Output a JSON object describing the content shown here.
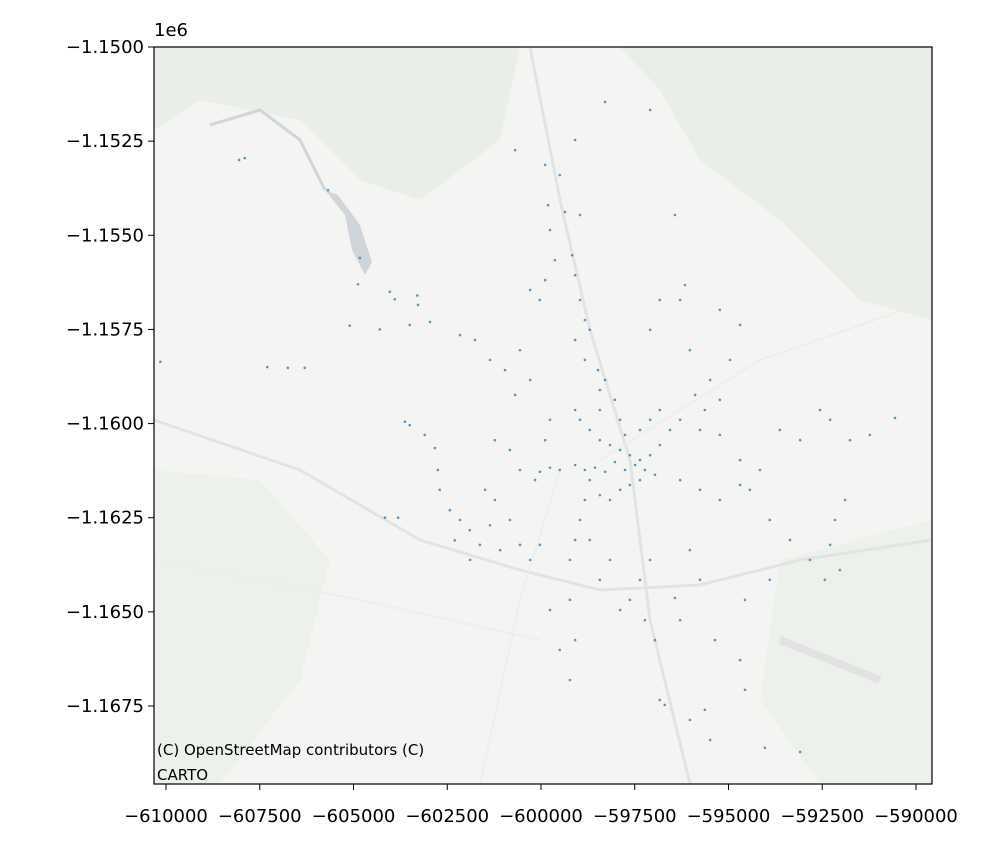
{
  "chart_data": {
    "type": "scatter",
    "offset_label": "1e6",
    "attribution": [
      "(C) OpenStreetMap contributors (C)",
      "CARTO"
    ],
    "color": "#1f77b4",
    "xlim": [
      -610320,
      -589573
    ],
    "ylim": [
      -1169571,
      -1150000
    ],
    "xticks": [
      {
        "value": -610000,
        "label": "−610000"
      },
      {
        "value": -607500,
        "label": "−607500"
      },
      {
        "value": -605000,
        "label": "−605000"
      },
      {
        "value": -602500,
        "label": "−602500"
      },
      {
        "value": -600000,
        "label": "−600000"
      },
      {
        "value": -597500,
        "label": "−597500"
      },
      {
        "value": -595000,
        "label": "−595000"
      },
      {
        "value": -592500,
        "label": "−592500"
      },
      {
        "value": -590000,
        "label": "−590000"
      }
    ],
    "yticks": [
      {
        "value": -1150000,
        "label": "−1.1500"
      },
      {
        "value": -1152500,
        "label": "−1.1525"
      },
      {
        "value": -1155000,
        "label": "−1.1550"
      },
      {
        "value": -1157500,
        "label": "−1.1575"
      },
      {
        "value": -1160000,
        "label": "−1.1600"
      },
      {
        "value": -1162500,
        "label": "−1.1625"
      },
      {
        "value": -1165000,
        "label": "−1.1650"
      },
      {
        "value": -1167500,
        "label": "−1.1675"
      }
    ],
    "x": [
      -607900,
      -608050,
      -605680,
      -604830,
      -604880,
      -605100,
      -604300,
      -603900,
      -604030,
      -603300,
      -603280,
      -602960,
      -602160,
      -603500,
      -607300,
      -606750,
      -606300,
      -610150,
      -603630,
      -603500,
      -603100,
      -602830,
      -602750,
      -602700,
      -604160,
      -603810,
      -602430,
      -602300,
      -601890,
      -601630,
      -601360,
      -601090,
      -600830,
      -600560,
      -600290,
      -600030,
      -601900,
      -602160,
      -601230,
      -601490,
      -601760,
      -601360,
      -600960,
      -600560,
      -600290,
      -600690,
      -601230,
      -600830,
      -600560,
      -600160,
      -599890,
      -599760,
      -599810,
      -599760,
      -599630,
      -599890,
      -599360,
      -598960,
      -599170,
      -599090,
      -598960,
      -598830,
      -598700,
      -599090,
      -598830,
      -598480,
      -598430,
      -598290,
      -600290,
      -600030,
      -599890,
      -599500,
      -600690,
      -598290,
      -597090,
      -599090,
      -599090,
      -598960,
      -598700,
      -598430,
      -598160,
      -597890,
      -597630,
      -597360,
      -597090,
      -596830,
      -596560,
      -596290,
      -599090,
      -598830,
      -598560,
      -598290,
      -598030,
      -597760,
      -597490,
      -597230,
      -596960,
      -597890,
      -597760,
      -598030,
      -598430,
      -597360,
      -597090,
      -596830,
      -599500,
      -599760,
      -600030,
      -598700,
      -598430,
      -598160,
      -597890,
      -597630,
      -597360,
      -598830,
      -598960,
      -599090,
      -599230,
      -598700,
      -595760,
      -595230,
      -594690,
      -594160,
      -593630,
      -593090,
      -592290,
      -591760,
      -591230,
      -590560,
      -595230,
      -595630,
      -594960,
      -594690,
      -595230,
      -596030,
      -596290,
      -596830,
      -597090,
      -596430,
      -596160,
      -595490,
      -595890,
      -596290,
      -595760,
      -595230,
      -594690,
      -594430,
      -593900,
      -593360,
      -592830,
      -592290,
      -592160,
      -592430,
      -591890,
      -593900,
      -594560,
      -596030,
      -595760,
      -596290,
      -597090,
      -597360,
      -597630,
      -597230,
      -596960,
      -596830,
      -596700,
      -596030,
      -595630,
      -595360,
      -594690,
      -594560,
      -594030,
      -593090,
      -595490,
      -599230,
      -599090,
      -599230,
      -599500,
      -599760,
      -598430,
      -598160,
      -596430,
      -597890,
      -592030,
      -592560
    ],
    "y": [
      -1152950,
      -1153000,
      -1153800,
      -1155600,
      -1156300,
      -1157400,
      -1157500,
      -1156700,
      -1156500,
      -1156600,
      -1156850,
      -1157300,
      -1157650,
      -1157380,
      -1158500,
      -1158520,
      -1158520,
      -1158360,
      -1159950,
      -1160040,
      -1160300,
      -1160650,
      -1161230,
      -1161760,
      -1162500,
      -1162500,
      -1162300,
      -1163100,
      -1163620,
      -1163220,
      -1162700,
      -1163360,
      -1162560,
      -1163220,
      -1163620,
      -1163220,
      -1162830,
      -1162560,
      -1162030,
      -1161760,
      -1157780,
      -1158310,
      -1158580,
      -1158050,
      -1158840,
      -1159240,
      -1160440,
      -1160700,
      -1161230,
      -1161500,
      -1160440,
      -1159900,
      -1154200,
      -1154860,
      -1155660,
      -1156190,
      -1154380,
      -1154460,
      -1155530,
      -1156060,
      -1156720,
      -1157250,
      -1157510,
      -1157780,
      -1158310,
      -1158580,
      -1159110,
      -1158840,
      -1156450,
      -1156720,
      -1153130,
      -1153400,
      -1152740,
      -1151460,
      -1151670,
      -1152470,
      -1159640,
      -1159900,
      -1160170,
      -1160440,
      -1160570,
      -1160700,
      -1160840,
      -1160970,
      -1160840,
      -1160570,
      -1160170,
      -1159900,
      -1161100,
      -1161230,
      -1161170,
      -1161280,
      -1161020,
      -1161230,
      -1161100,
      -1161230,
      -1161360,
      -1159900,
      -1160300,
      -1159370,
      -1159640,
      -1160170,
      -1159900,
      -1159640,
      -1161230,
      -1161170,
      -1161280,
      -1161500,
      -1161900,
      -1162030,
      -1161760,
      -1161630,
      -1161500,
      -1162030,
      -1162560,
      -1163090,
      -1163620,
      -1163090,
      -1160170,
      -1160300,
      -1160970,
      -1161230,
      -1160170,
      -1160440,
      -1159900,
      -1160440,
      -1160300,
      -1159850,
      -1159370,
      -1159640,
      -1158310,
      -1157380,
      -1156980,
      -1158050,
      -1156720,
      -1156720,
      -1157510,
      -1154460,
      -1156320,
      -1158840,
      -1159240,
      -1161500,
      -1161760,
      -1162030,
      -1161630,
      -1161760,
      -1162560,
      -1163090,
      -1163620,
      -1163220,
      -1162560,
      -1164150,
      -1162030,
      -1164150,
      -1164680,
      -1163360,
      -1164150,
      -1165220,
      -1163620,
      -1164150,
      -1164680,
      -1165220,
      -1165750,
      -1167340,
      -1167470,
      -1167870,
      -1167600,
      -1165750,
      -1166280,
      -1167070,
      -1168610,
      -1168720,
      -1168400,
      -1164680,
      -1165750,
      -1166810,
      -1166010,
      -1164950,
      -1164150,
      -1163620,
      -1164630,
      -1164950,
      -1163890,
      -1159640
    ]
  }
}
